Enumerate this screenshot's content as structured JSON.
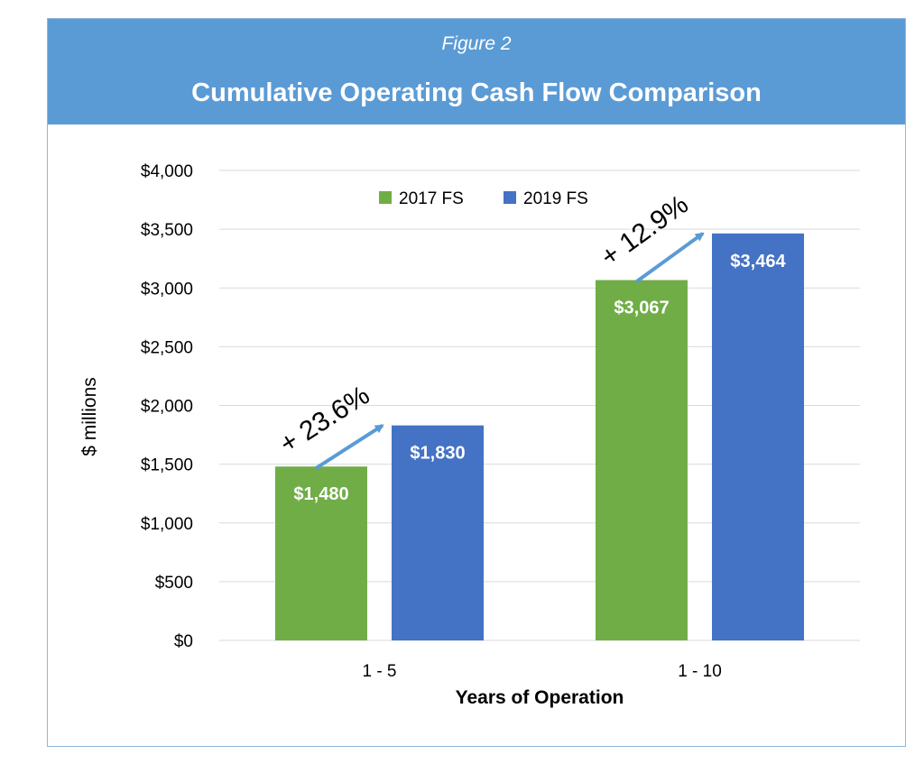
{
  "figure_label": "Figure 2",
  "chart_data": {
    "type": "bar",
    "title": "Cumulative Operating Cash Flow Comparison",
    "xlabel": "Years of Operation",
    "ylabel": "$ millions",
    "categories": [
      "1 - 5",
      "1 - 10"
    ],
    "series": [
      {
        "name": "2017 FS",
        "color": "#70ad47",
        "values": [
          1480,
          3067
        ],
        "labels": [
          "$1,480",
          "$3,067"
        ]
      },
      {
        "name": "2019 FS",
        "color": "#4472c4",
        "values": [
          1830,
          3464
        ],
        "labels": [
          "$1,830",
          "$3,464"
        ]
      }
    ],
    "ylim": [
      0,
      4000
    ],
    "yticks": [
      {
        "value": 0,
        "label": "$0"
      },
      {
        "value": 500,
        "label": "$500"
      },
      {
        "value": 1000,
        "label": "$1,000"
      },
      {
        "value": 1500,
        "label": "$1,500"
      },
      {
        "value": 2000,
        "label": "$2,000"
      },
      {
        "value": 2500,
        "label": "$2,500"
      },
      {
        "value": 3000,
        "label": "$3,000"
      },
      {
        "value": 3500,
        "label": "$3,500"
      },
      {
        "value": 4000,
        "label": "$4,000"
      }
    ],
    "grid": true,
    "legend_position": "top-center",
    "annotations": [
      "+ 23.6%",
      "+ 12.9%"
    ],
    "annotation_color": "#5b9bd5"
  }
}
